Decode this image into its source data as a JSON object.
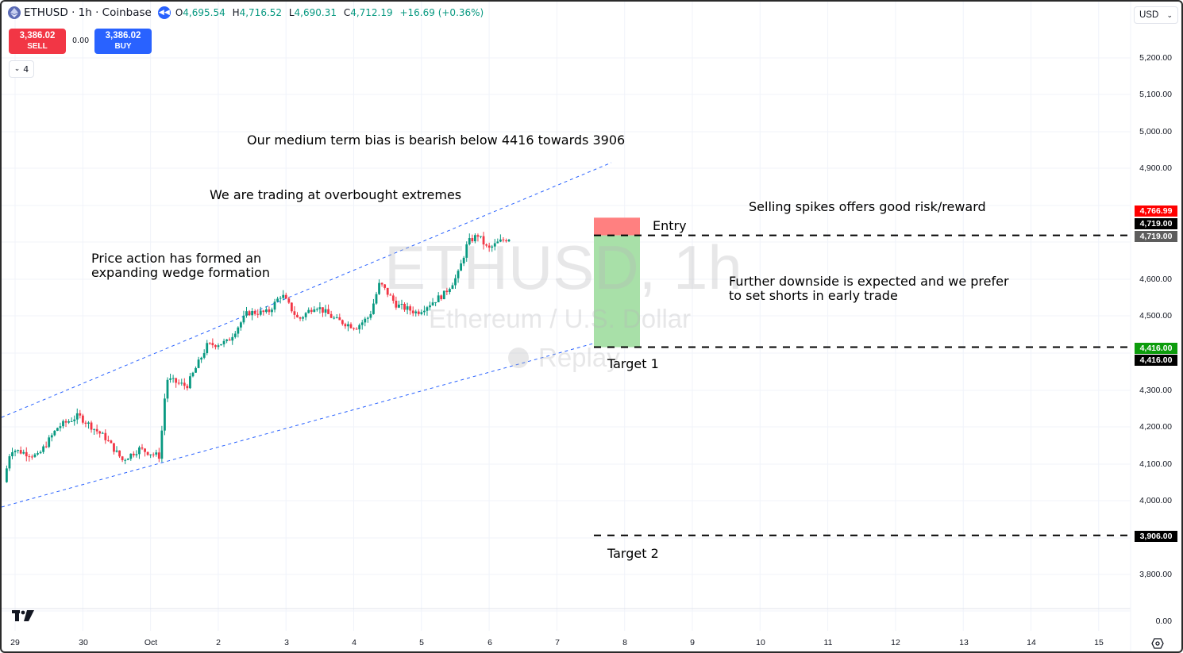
{
  "header": {
    "symbol": "ETHUSD",
    "interval": "1h",
    "exchange": "Coinbase",
    "title": "ETHUSD · 1h · Coinbase",
    "icons": {
      "symbol_logo": "ethereum-logo-icon",
      "replay": "replay-rewind-icon"
    },
    "ohlc": {
      "open_label": "O",
      "open": "4,695.54",
      "high_label": "H",
      "high": "4,716.52",
      "low_label": "L",
      "low": "4,690.31",
      "close_label": "C",
      "close": "4,712.19",
      "change": "+16.69 (+0.36%)"
    }
  },
  "trade_panel": {
    "sell_price": "3,386.02",
    "sell_label": "SELL",
    "spread": "0.00",
    "buy_price": "3,386.02",
    "buy_label": "BUY"
  },
  "indicators_toggle": {
    "label": "4"
  },
  "currency_selector": {
    "value": "USD"
  },
  "watermark": {
    "line1": "ETHUSD, 1h",
    "line2": "Ethereum / U.S. Dollar",
    "line3": "Replay"
  },
  "annotations": {
    "bias": "Our medium term bias is bearish below 4416 towards 3906",
    "overbought": "We are trading at overbought extremes",
    "wedge_line1": "Price action has formed an",
    "wedge_line2": "expanding wedge formation",
    "selling_spikes": "Selling spikes offers good risk/reward",
    "downside_line1": "Further downside is expected and we prefer",
    "downside_line2": "to set shorts in early trade",
    "entry": "Entry",
    "target1": "Target 1",
    "target2": "Target 2"
  },
  "price_axis": {
    "labels": [
      "5,200.00",
      "5,100.00",
      "5,000.00",
      "4,900.00",
      "4,600.00",
      "4,500.00",
      "4,300.00",
      "4,200.00",
      "4,100.00",
      "4,000.00",
      "3,800.00",
      "0.00"
    ],
    "tags": [
      {
        "value": "4,766.99",
        "color": "#ff0000"
      },
      {
        "value": "4,719.00",
        "color": "#000000"
      },
      {
        "value": "4,719.00",
        "color": "#5d5d5d"
      },
      {
        "value": "4,416.00",
        "color": "#0c9c0c"
      },
      {
        "value": "4,416.00",
        "color": "#000000"
      },
      {
        "value": "3,906.00",
        "color": "#000000"
      }
    ]
  },
  "time_axis": {
    "labels": [
      "29",
      "30",
      "Oct",
      "2",
      "3",
      "4",
      "5",
      "6",
      "7",
      "8",
      "9",
      "10",
      "11",
      "12",
      "13",
      "14",
      "15"
    ]
  },
  "colors": {
    "up": "#089981",
    "down": "#f23645",
    "trendline": "#2962ff",
    "stop_zone": "#ff8080",
    "target_zone": "#a8e0a8",
    "grid": "#f0f3fa"
  },
  "chart_data": {
    "type": "candlestick",
    "title": "ETHUSD · 1h · Coinbase",
    "xlabel": "",
    "ylabel": "USD",
    "x_ticks": [
      "29",
      "30",
      "Oct",
      "2",
      "3",
      "4",
      "5",
      "6",
      "7",
      "8",
      "9",
      "10",
      "11",
      "12",
      "13",
      "14",
      "15"
    ],
    "y_ticks": [
      3800,
      4000,
      4100,
      4200,
      4300,
      4500,
      4600,
      4900,
      5000,
      5100,
      5200
    ],
    "ylim": [
      3700,
      5250
    ],
    "grid": true,
    "approx_daily_closes": {
      "Sep 29": 4140,
      "Sep 30": 4180,
      "Oct 1": 4120,
      "Oct 2": 4380,
      "Oct 3": 4510,
      "Oct 4": 4530,
      "Oct 5": 4480,
      "Oct 6": 4600,
      "Oct 7": 4712
    },
    "last_candle": {
      "open": 4695.54,
      "high": 4716.52,
      "low": 4690.31,
      "close": 4712.19,
      "change": 16.69,
      "change_pct": 0.36
    },
    "levels": [
      {
        "name": "Stop",
        "value": 4766.99
      },
      {
        "name": "Entry",
        "value": 4719.0
      },
      {
        "name": "Target 1",
        "value": 4416.0
      },
      {
        "name": "Target 2",
        "value": 3906.0
      }
    ],
    "trendlines": [
      {
        "name": "upper wedge",
        "from": [
          "Sep 28 12:00",
          4230
        ],
        "to": [
          "Oct 8 00:00",
          4915
        ]
      },
      {
        "name": "lower wedge",
        "from": [
          "Sep 28 12:00",
          3985
        ],
        "to": [
          "Oct 7 12:00",
          4425
        ]
      }
    ],
    "position": {
      "type": "short",
      "entry": 4719.0,
      "stop": 4766.99,
      "target": 4416.0
    }
  }
}
